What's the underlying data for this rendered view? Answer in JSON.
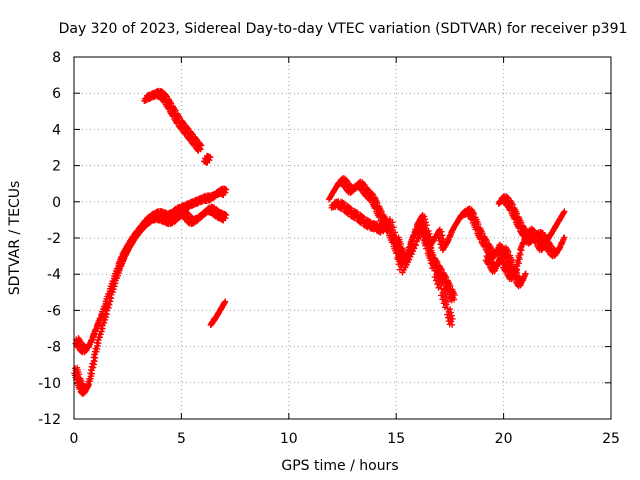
{
  "chart_data": {
    "type": "scatter",
    "title": "Day 320 of 2023, Sidereal Day-to-day VTEC variation (SDTVAR) for receiver p391",
    "xlabel": "GPS time / hours",
    "ylabel": "SDTVAR / TECUs",
    "xlim": [
      0,
      25
    ],
    "ylim": [
      -12,
      8
    ],
    "xticks": [
      0,
      5,
      10,
      15,
      20,
      25
    ],
    "yticks": [
      -12,
      -10,
      -8,
      -6,
      -4,
      -2,
      0,
      2,
      4,
      6,
      8
    ],
    "grid": true,
    "marker": "+",
    "color": "#ff0000",
    "series": [
      {
        "name": "rising-upper",
        "x": [
          0.1,
          0.3,
          0.5,
          0.7,
          0.9,
          1.1,
          1.3,
          1.5,
          1.7,
          1.9,
          2.1,
          2.3,
          2.5,
          2.7,
          2.9,
          3.1,
          3.3,
          3.5,
          3.7,
          3.9,
          4.1,
          4.3,
          4.5,
          4.7,
          4.9,
          5.1,
          5.3,
          5.5,
          5.7,
          5.9,
          6.1,
          6.3,
          6.5,
          6.7,
          6.9,
          7.05
        ],
        "y": [
          -7.6,
          -8.0,
          -8.2,
          -8.0,
          -7.4,
          -6.8,
          -6.2,
          -5.5,
          -4.8,
          -4.1,
          -3.4,
          -2.8,
          -2.4,
          -2.0,
          -1.7,
          -1.4,
          -1.1,
          -0.9,
          -0.75,
          -0.65,
          -0.7,
          -0.8,
          -0.7,
          -0.5,
          -0.4,
          -0.3,
          -0.2,
          -0.1,
          0.0,
          0.1,
          0.2,
          0.2,
          0.3,
          0.5,
          0.6,
          0.5
        ]
      },
      {
        "name": "rising-lower",
        "x": [
          0.05,
          0.2,
          0.35,
          0.5,
          0.65,
          0.8,
          0.95,
          1.1,
          1.3,
          1.5,
          1.7,
          1.9,
          2.1,
          2.3,
          2.5,
          2.7,
          2.9,
          3.1,
          3.3,
          3.5,
          3.7,
          3.9,
          4.1,
          4.3,
          4.5,
          4.7,
          4.9,
          5.1,
          5.3,
          5.5,
          5.7,
          5.9,
          6.1,
          6.3,
          6.5,
          6.7,
          6.9,
          7.05
        ],
        "y": [
          -9.2,
          -9.8,
          -10.3,
          -10.5,
          -10.2,
          -9.5,
          -8.6,
          -7.8,
          -7.0,
          -6.2,
          -5.3,
          -4.5,
          -3.8,
          -3.2,
          -2.7,
          -2.3,
          -1.9,
          -1.6,
          -1.3,
          -1.1,
          -0.9,
          -0.85,
          -0.9,
          -1.0,
          -1.1,
          -1.0,
          -0.8,
          -0.6,
          -0.9,
          -1.1,
          -1.0,
          -0.8,
          -0.6,
          -0.4,
          -0.5,
          -0.7,
          -0.8,
          -0.9
        ]
      },
      {
        "name": "descending-arc",
        "x": [
          3.3,
          3.5,
          3.7,
          3.9,
          4.1,
          4.3,
          4.5,
          4.7,
          4.9,
          5.1,
          5.3,
          5.5,
          5.7,
          5.9
        ],
        "y": [
          5.7,
          5.8,
          5.9,
          6.0,
          5.9,
          5.6,
          5.2,
          4.8,
          4.4,
          4.1,
          3.8,
          3.5,
          3.2,
          2.9
        ]
      },
      {
        "name": "short-segment-a",
        "x": [
          6.1,
          6.2,
          6.3
        ],
        "y": [
          2.4,
          2.35,
          2.3
        ]
      },
      {
        "name": "short-segment-b",
        "x": [
          6.4,
          6.55,
          6.7,
          6.85,
          7.0
        ],
        "y": [
          -6.7,
          -6.5,
          -6.2,
          -5.9,
          -5.6
        ]
      },
      {
        "name": "afternoon-a",
        "x": [
          11.9,
          12.1,
          12.3,
          12.5,
          12.7,
          12.9,
          13.1,
          13.3,
          13.5,
          13.7,
          13.9,
          14.1,
          14.3,
          14.5,
          14.7,
          14.9,
          15.1,
          15.3,
          15.5,
          15.7,
          15.9,
          16.1,
          16.3,
          16.5,
          16.7,
          16.9,
          17.1,
          17.3,
          17.5,
          17.7
        ],
        "y": [
          0.2,
          0.6,
          1.0,
          1.2,
          0.9,
          0.6,
          0.8,
          1.0,
          0.7,
          0.4,
          0.2,
          -0.3,
          -0.8,
          -1.2,
          -1.6,
          -2.2,
          -2.8,
          -3.4,
          -3.0,
          -2.2,
          -1.6,
          -1.2,
          -1.8,
          -2.6,
          -3.2,
          -3.6,
          -4.0,
          -4.4,
          -4.9,
          -5.4
        ]
      },
      {
        "name": "afternoon-b",
        "x": [
          12.0,
          12.3,
          12.6,
          12.9,
          13.2,
          13.5,
          13.8,
          14.1,
          14.4,
          14.7,
          15.0,
          15.3,
          15.6,
          15.9,
          16.2,
          16.5,
          16.8,
          17.1,
          17.4,
          17.6
        ],
        "y": [
          -0.2,
          -0.1,
          -0.3,
          -0.6,
          -0.8,
          -1.1,
          -1.3,
          -1.4,
          -1.6,
          -1.0,
          -2.4,
          -3.9,
          -3.2,
          -2.4,
          -1.4,
          -2.4,
          -3.8,
          -4.8,
          -5.9,
          -6.8
        ]
      },
      {
        "name": "afternoon-c",
        "x": [
          15.0,
          15.2,
          15.4,
          15.6,
          15.8,
          16.0,
          16.2,
          16.4,
          16.6,
          16.8,
          17.0,
          17.2,
          17.4,
          17.6,
          17.8,
          18.0,
          18.2,
          18.4,
          18.6,
          18.8,
          19.0,
          19.2,
          19.4,
          19.6,
          19.8,
          20.0,
          20.2,
          20.4,
          20.6,
          20.8,
          21.0,
          21.2,
          21.4,
          21.6,
          21.8,
          22.0,
          22.2,
          22.4,
          22.6,
          22.8
        ],
        "y": [
          -2.0,
          -2.6,
          -3.2,
          -2.8,
          -2.0,
          -1.2,
          -0.8,
          -1.6,
          -2.4,
          -2.0,
          -1.6,
          -2.6,
          -2.2,
          -1.6,
          -1.2,
          -0.8,
          -0.6,
          -0.5,
          -0.9,
          -1.5,
          -2.0,
          -2.4,
          -2.8,
          -3.0,
          -2.4,
          -3.4,
          -3.8,
          -4.2,
          -3.8,
          -2.6,
          -2.0,
          -1.6,
          -1.8,
          -2.2,
          -2.6,
          -2.2,
          -1.8,
          -1.4,
          -1.0,
          -0.6
        ]
      },
      {
        "name": "evening-a",
        "x": [
          19.8,
          20.0,
          20.2,
          20.4,
          20.6,
          20.8,
          21.0,
          21.2,
          21.4,
          21.6,
          21.8,
          22.0,
          22.2,
          22.4,
          22.6,
          22.8
        ],
        "y": [
          0.0,
          0.2,
          0.0,
          -0.4,
          -0.9,
          -1.4,
          -1.8,
          -2.2,
          -2.0,
          -1.8,
          -1.9,
          -2.3,
          -2.7,
          -2.9,
          -2.6,
          -2.0
        ]
      },
      {
        "name": "evening-b",
        "x": [
          19.2,
          19.4,
          19.6,
          19.8,
          20.0,
          20.2,
          20.4,
          20.6,
          20.8,
          21.0
        ],
        "y": [
          -3.0,
          -3.4,
          -3.8,
          -3.2,
          -2.6,
          -3.0,
          -3.6,
          -4.2,
          -4.6,
          -4.0
        ]
      }
    ]
  }
}
